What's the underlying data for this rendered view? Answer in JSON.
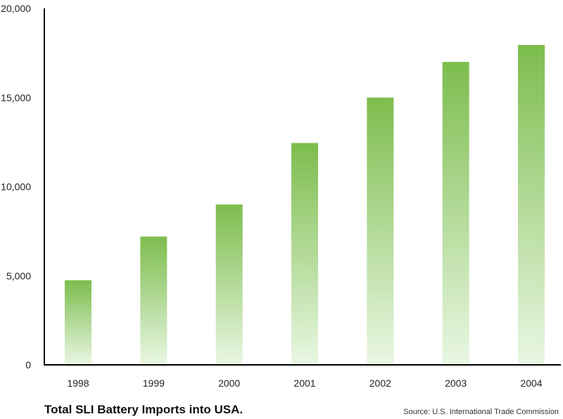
{
  "chart_data": {
    "type": "bar",
    "title": "Total SLI Battery Imports into USA.",
    "source": "Source: U.S. International Trade Commission",
    "categories": [
      "1998",
      "1999",
      "2000",
      "2001",
      "2002",
      "2003",
      "2004"
    ],
    "values": [
      4750,
      7200,
      9000,
      12450,
      15000,
      17000,
      17950
    ],
    "ylim": [
      0,
      20000
    ],
    "yticks": [
      0,
      5000,
      10000,
      15000,
      20000
    ],
    "ytick_labels": [
      "0",
      "5,000",
      "10,000",
      "15,000",
      "20,000"
    ],
    "xlabel": "",
    "ylabel": "",
    "grid": false,
    "colors": {
      "bar_top": "#7dbd4e",
      "bar_bottom": "#e9f7e3",
      "axis": "#000000"
    }
  }
}
